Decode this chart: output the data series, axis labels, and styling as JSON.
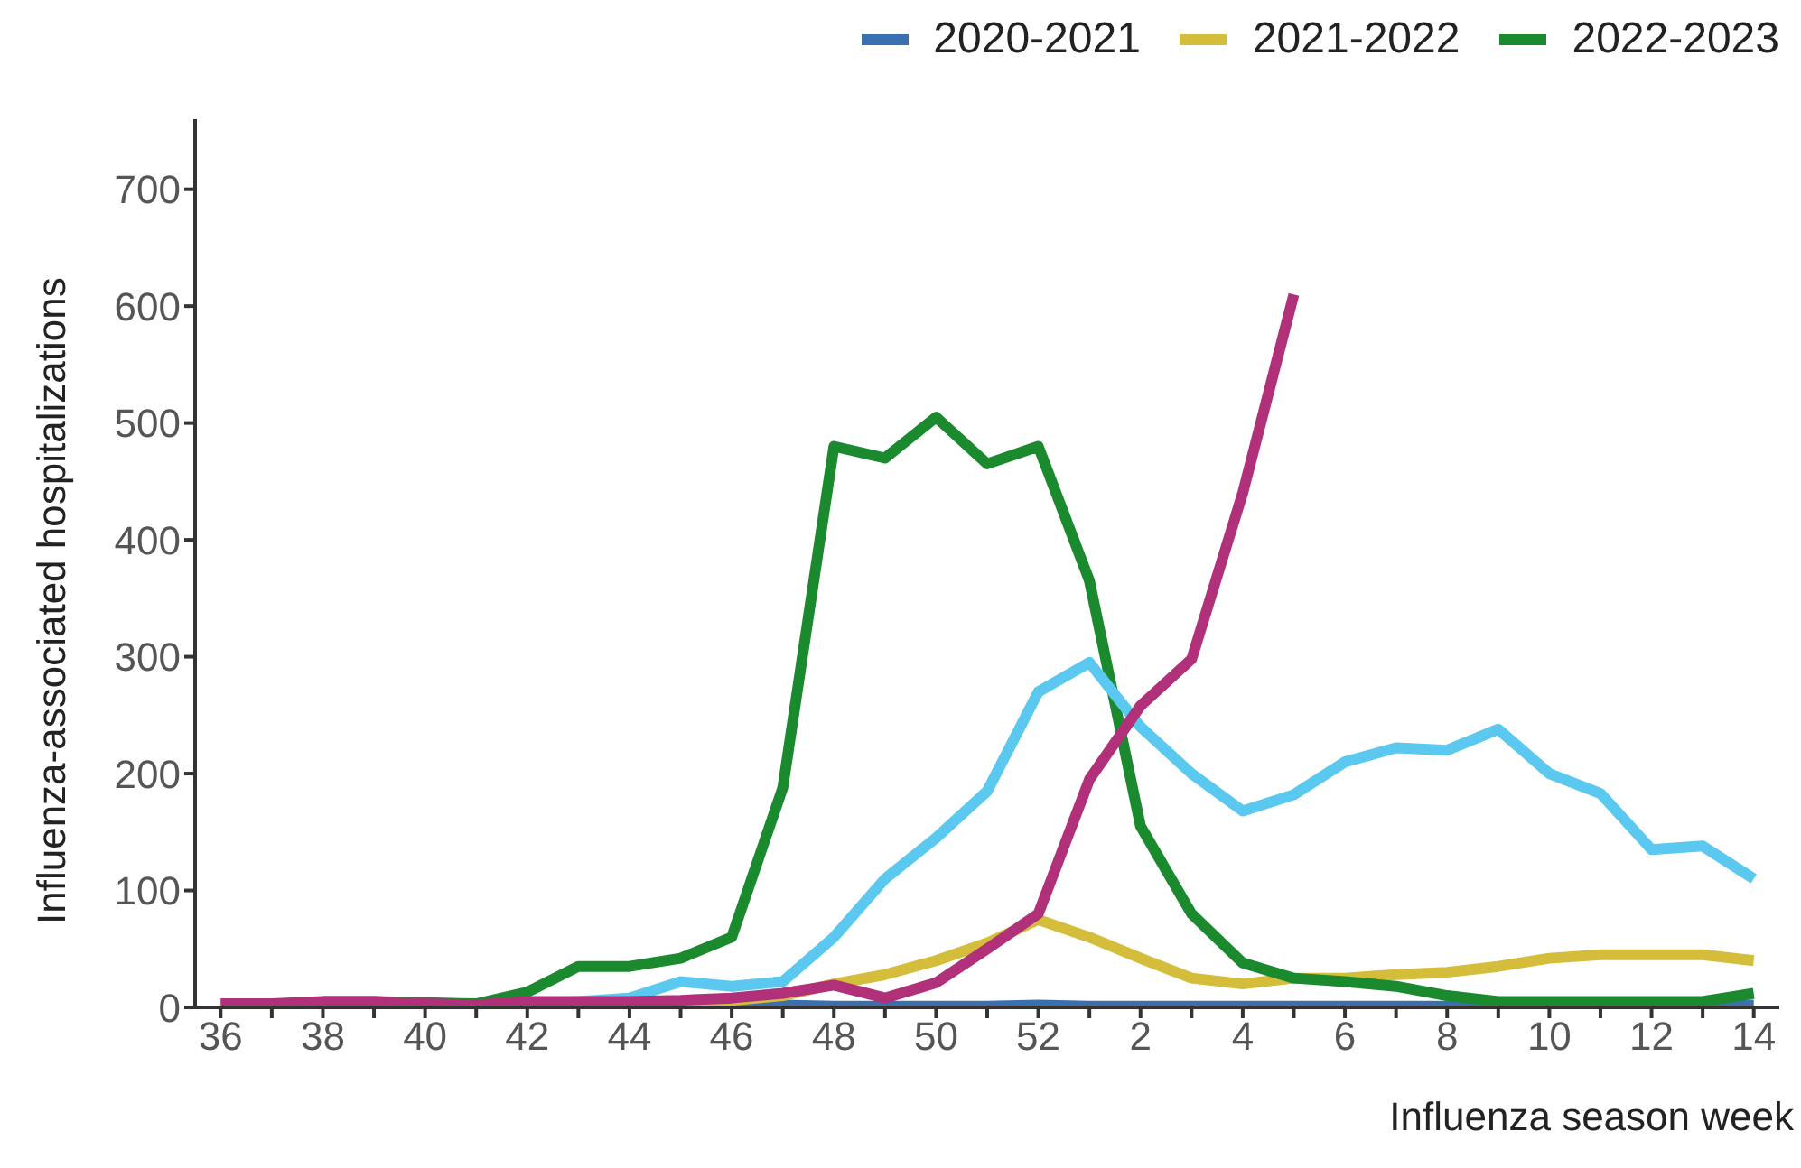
{
  "chart_data": {
    "type": "line",
    "xlabel": "Influenza season week",
    "ylabel": "Influenza-associated hospitalizations",
    "categories": [
      "36",
      null,
      "38",
      null,
      "40",
      null,
      "42",
      null,
      "44",
      null,
      "46",
      null,
      "48",
      null,
      "50",
      null,
      "52",
      null,
      "2",
      null,
      "4",
      null,
      "6",
      null,
      "8",
      null,
      "10",
      null,
      "12",
      null,
      "14"
    ],
    "series": [
      {
        "name": "2020-2021",
        "color": "#3a6fb0",
        "values": [
          null,
          null,
          null,
          null,
          null,
          null,
          null,
          null,
          null,
          2,
          2,
          2,
          1,
          1,
          1,
          1,
          2,
          1,
          1,
          1,
          1,
          1,
          1,
          1,
          1,
          1,
          1,
          1,
          1,
          2,
          2
        ]
      },
      {
        "name": "2021-2022",
        "color": "#d4bd3a",
        "values": [
          null,
          null,
          null,
          null,
          null,
          null,
          null,
          null,
          4,
          5,
          6,
          10,
          20,
          28,
          40,
          55,
          75,
          60,
          42,
          25,
          20,
          25,
          25,
          28,
          30,
          35,
          42,
          45,
          45,
          45,
          40
        ]
      },
      {
        "name": "2022-2023",
        "color": "#1b8a2e",
        "values": [
          null,
          null,
          5,
          5,
          4,
          3,
          13,
          35,
          35,
          42,
          60,
          188,
          480,
          470,
          505,
          465,
          480,
          365,
          155,
          80,
          38,
          25,
          22,
          18,
          10,
          5,
          5,
          5,
          5,
          5,
          12
        ]
      },
      {
        "color": "#5bc8ef",
        "values": [
          null,
          null,
          null,
          null,
          null,
          null,
          3,
          5,
          8,
          22,
          18,
          22,
          60,
          110,
          145,
          185,
          270,
          295,
          240,
          200,
          168,
          182,
          210,
          222,
          220,
          238,
          200,
          183,
          135,
          138,
          110
        ]
      },
      {
        "color": "#b0307a",
        "values": [
          3,
          3,
          5,
          5,
          3,
          2,
          5,
          5,
          5,
          6,
          8,
          12,
          19,
          8,
          21,
          50,
          80,
          195,
          258,
          298,
          440,
          610,
          null,
          null,
          null,
          null,
          null,
          null,
          null,
          null,
          null
        ]
      }
    ],
    "ylim": [
      0,
      760
    ],
    "yticks": [
      0,
      100,
      200,
      300,
      400,
      500,
      600,
      700
    ],
    "grid": false,
    "legend": "top right",
    "marker": "none",
    "line_style": "solid"
  }
}
